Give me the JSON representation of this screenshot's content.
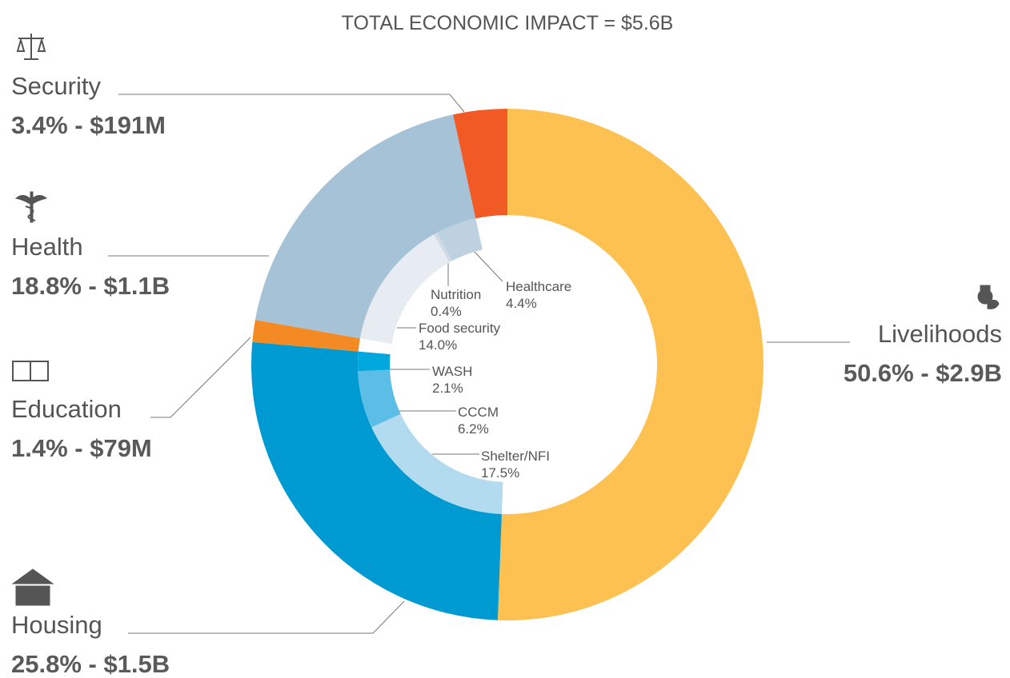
{
  "chart_data": {
    "type": "donut",
    "title": "TOTAL ECONOMIC IMPACT = $5.6B",
    "segments": [
      {
        "name": "Livelihoods",
        "value": 50.6,
        "value_label": "50.6% - $2.9B",
        "color": "#fdc152"
      },
      {
        "name": "Housing",
        "value": 25.8,
        "value_label": "25.8% - $1.5B",
        "color": "#009ad2",
        "children": [
          {
            "name": "Shelter/NFI",
            "value": 17.5,
            "value_label": "17.5%",
            "color": "#b3dbef"
          },
          {
            "name": "CCCM",
            "value": 6.2,
            "value_label": "6.2%",
            "color": "#5cbde6"
          },
          {
            "name": "WASH",
            "value": 2.1,
            "value_label": "2.1%",
            "color": "#00a8de"
          }
        ]
      },
      {
        "name": "Education",
        "value": 1.4,
        "value_label": "1.4% - $79M",
        "color": "#f38a24"
      },
      {
        "name": "Health",
        "value": 18.8,
        "value_label": "18.8% - $1.1B",
        "color": "#a6c2d6",
        "children": [
          {
            "name": "Food security",
            "value": 14.0,
            "value_label": "14.0%",
            "color": "#e7ebf2"
          },
          {
            "name": "Nutrition",
            "value": 0.4,
            "value_label": "0.4%",
            "color": "#d0dae5"
          },
          {
            "name": "Healthcare",
            "value": 4.4,
            "value_label": "4.4%",
            "color": "#bdd1e0"
          }
        ]
      },
      {
        "name": "Security",
        "value": 3.4,
        "value_label": "3.4% - $191M",
        "color": "#f15a25"
      }
    ]
  }
}
